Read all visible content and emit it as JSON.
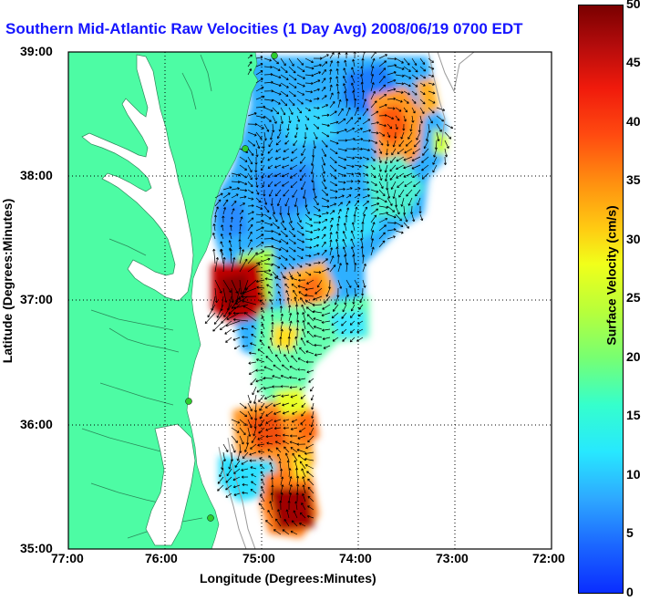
{
  "title": "Southern Mid-Atlantic Raw Velocities (1 Day Avg) 2008/06/19 0700 EDT",
  "x_axis": {
    "label": "Longitude (Degrees:Minutes)",
    "ticks": [
      "77:00",
      "76:00",
      "75:00",
      "74:00",
      "73:00",
      "72:00"
    ]
  },
  "y_axis": {
    "label": "Latitude (Degrees:Minutes)",
    "ticks": [
      "39:00",
      "38:00",
      "37:00",
      "36:00",
      "35:00"
    ]
  },
  "colorbar": {
    "label": "Surface Velocity (cm/s)",
    "ticks": [
      "50",
      "45",
      "40",
      "35",
      "30",
      "25",
      "20",
      "15",
      "10",
      "5",
      "0"
    ],
    "min": 0,
    "max": 50,
    "colormap": "jet"
  },
  "colors": {
    "land": "#4dfca4",
    "water": "#ffffff",
    "title": "#1515ff",
    "shelf_contour": "#9a9a9a",
    "station_marker": "#2ecc2e"
  },
  "grid": true
}
